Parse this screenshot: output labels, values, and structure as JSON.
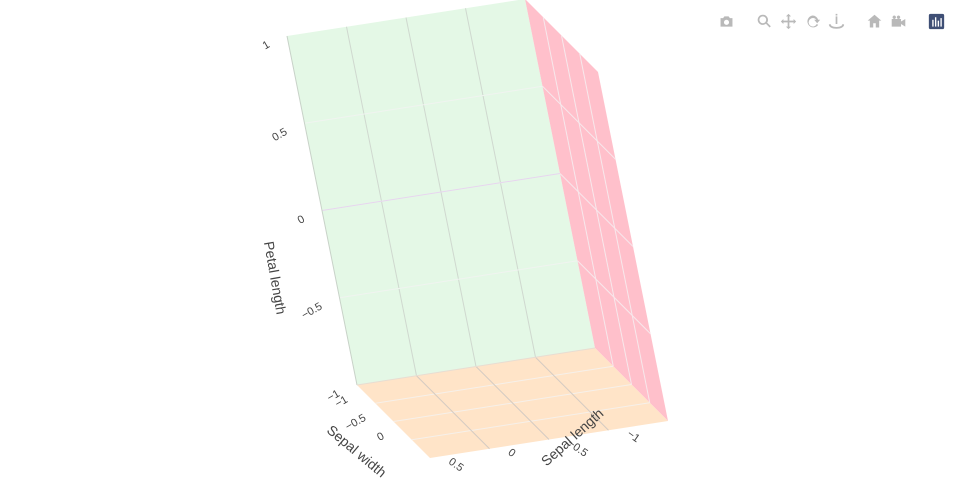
{
  "chart_data": {
    "type": "scatter3d",
    "title": "",
    "axes": {
      "x": {
        "title": "Sepal width",
        "range": [
          -1,
          1
        ],
        "ticks": [
          "−1",
          "−0.5",
          "0",
          "0.5"
        ],
        "backgroundcolor": "#ffe4c8"
      },
      "y": {
        "title": "Sepal length",
        "range": [
          -1,
          1
        ],
        "ticks": [
          "−1",
          "−0.5",
          "0",
          "0.5"
        ],
        "backgroundcolor": "#ffc0cb"
      },
      "z": {
        "title": "Petal length",
        "range": [
          -1,
          1
        ],
        "ticks": [
          "−1",
          "−0.5",
          "0",
          "0.5",
          "1"
        ],
        "backgroundcolor": "#e4f8e6"
      }
    },
    "series": [],
    "grid": true
  },
  "modebar": {
    "buttons": [
      {
        "name": "camera-icon",
        "title": "Download plot as a png"
      },
      {
        "name": "zoom-icon",
        "title": "Zoom"
      },
      {
        "name": "pan-icon",
        "title": "Pan"
      },
      {
        "name": "orbit-rotation-icon",
        "title": "Orbital rotation"
      },
      {
        "name": "turntable-rotation-icon",
        "title": "Turntable rotation"
      },
      {
        "name": "home-icon",
        "title": "Reset camera to default"
      },
      {
        "name": "last-save-icon",
        "title": "Reset camera to last save"
      },
      {
        "name": "plotly-logo-icon",
        "title": "Produced with Plotly"
      }
    ]
  }
}
